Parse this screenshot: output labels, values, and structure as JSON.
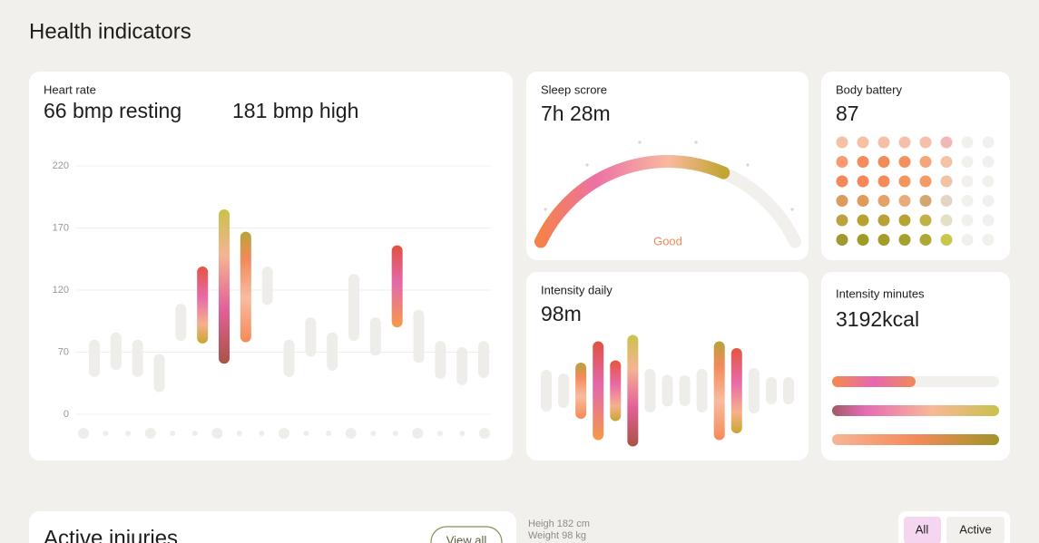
{
  "header": {
    "title": "Health indicators"
  },
  "chart_data": [
    {
      "type": "range-bar",
      "title": "Heart rate",
      "subtitles": [
        "66 bmp resting",
        "181 bmp high"
      ],
      "low": [
        42,
        50,
        42,
        25,
        79,
        77,
        57,
        78,
        108,
        42,
        65,
        49,
        79,
        66,
        90,
        58,
        40,
        33,
        41
      ],
      "high": [
        80,
        86,
        80,
        68,
        109,
        139,
        185,
        167,
        139,
        80,
        98,
        86,
        133,
        98,
        156,
        104,
        79,
        74,
        79
      ],
      "highlighted": [
        false,
        false,
        false,
        false,
        false,
        true,
        true,
        true,
        false,
        false,
        false,
        false,
        false,
        false,
        true,
        false,
        false,
        false,
        false
      ],
      "ylim": [
        0,
        220
      ],
      "yticks": [
        0,
        70,
        120,
        170,
        220
      ],
      "grid": true,
      "color": "#efedea"
    },
    {
      "type": "gauge",
      "title": "Sleep scrore",
      "subtitle": "7h 28m",
      "value": 68,
      "lim": [
        0,
        100
      ],
      "label": "Good",
      "color": "#f2f0ec"
    },
    {
      "type": "dot-grid",
      "title": "Body battery",
      "subtitle": "87"
    },
    {
      "type": "bar",
      "title": "Intensity daily",
      "subtitle": "98m",
      "values": [
        46,
        38,
        62,
        109,
        67,
        123,
        48,
        35,
        34,
        48,
        109,
        94,
        50,
        30,
        30
      ],
      "highlighted": [
        false,
        false,
        true,
        true,
        true,
        true,
        false,
        false,
        false,
        false,
        true,
        true,
        false,
        false,
        false
      ],
      "ylim": [
        0,
        130
      ],
      "color": "#efedea"
    },
    {
      "type": "progress",
      "title": "Intensity minutes",
      "subtitle": "3192kcal",
      "values": [
        50,
        100,
        100
      ],
      "xlim": [
        0,
        100
      ],
      "color": "#f2f0ec"
    }
  ],
  "injuries": {
    "title": "Active injuries",
    "button": "View all"
  },
  "profile": {
    "height": "Heigh 182 cm",
    "weight": "Weight 98 kg"
  },
  "tabs": [
    "All",
    "Active"
  ]
}
